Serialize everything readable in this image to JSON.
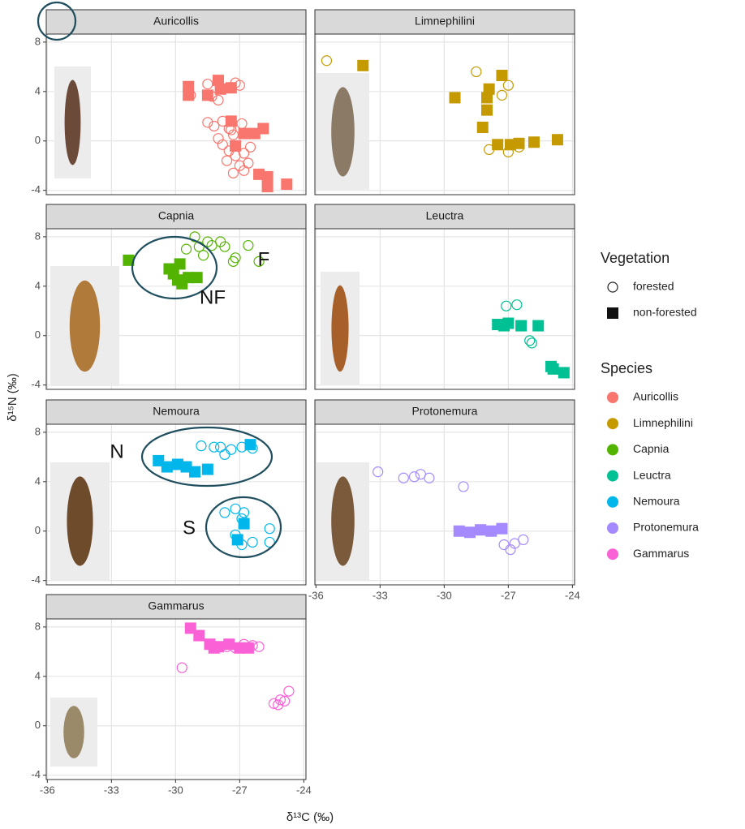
{
  "axes": {
    "x_label": "δ¹³C (‰)",
    "y_label": "δ¹⁵N (‰)"
  },
  "legend": {
    "vegetation_title": "Vegetation",
    "species_title": "Species"
  },
  "chart_data": [
    {
      "type": "scatter",
      "title": "Auricollis",
      "color": "#F8766D",
      "xlim": [
        -36.05,
        -23.9
      ],
      "xticks": [
        -36,
        -33,
        -30,
        -27,
        -24
      ],
      "ylim": [
        -4.35,
        8.65
      ],
      "yticks": [
        -4,
        0,
        4,
        8
      ],
      "grid": true,
      "series": [
        {
          "name": "forested",
          "marker": "circle",
          "x": [
            -28.5,
            -28,
            -27.2,
            -27,
            -28.3,
            -29.3,
            -28,
            -28.5,
            -28.2,
            -27.8,
            -27.5,
            -27.3,
            -28,
            -27.8,
            -27.5,
            -27.2,
            -26.8,
            -26.5,
            -27.6,
            -27,
            -26.6,
            -27.3,
            -26.8,
            -27.4,
            -26.9
          ],
          "values": [
            4.6,
            4.8,
            4.7,
            4.5,
            3.6,
            3.7,
            3.3,
            1.5,
            1.2,
            1.6,
            1.0,
            0.5,
            0.2,
            -0.3,
            -0.8,
            -1.2,
            -1.0,
            -0.5,
            -1.6,
            -2.0,
            -1.8,
            -2.6,
            -2.4,
            0.9,
            1.4
          ]
        },
        {
          "name": "non-forested",
          "marker": "square",
          "x": [
            -29.4,
            -29.4,
            -28.5,
            -28,
            -27.9,
            -27.4,
            -27.4,
            -26.8,
            -27.2,
            -26.3,
            -25.9,
            -26.1,
            -25.7,
            -25.7,
            -24.8
          ],
          "values": [
            4.4,
            3.7,
            3.7,
            4.9,
            4.2,
            4.3,
            1.6,
            0.6,
            -0.4,
            0.6,
            1.0,
            -2.7,
            -2.9,
            -3.7,
            -3.5
          ]
        }
      ]
    },
    {
      "type": "scatter",
      "title": "Limnephilini",
      "color": "#C49A00",
      "xlim": [
        -36.05,
        -23.9
      ],
      "xticks": [
        -36,
        -33,
        -30,
        -27,
        -24
      ],
      "ylim": [
        -4.35,
        8.65
      ],
      "yticks": [
        -4,
        0,
        4,
        8
      ],
      "grid": true,
      "series": [
        {
          "name": "forested",
          "marker": "circle",
          "x": [
            -35.5,
            -28.5,
            -27,
            -27.3,
            -27.9,
            -27,
            -26.5
          ],
          "values": [
            6.5,
            5.6,
            4.5,
            3.7,
            -0.7,
            -0.9,
            -0.5
          ]
        },
        {
          "name": "non-forested",
          "marker": "square",
          "x": [
            -33.8,
            -29.5,
            -27.3,
            -27.9,
            -28,
            -28,
            -28.2,
            -27.5,
            -26.9,
            -26.5,
            -25.8,
            -24.7
          ],
          "values": [
            6.1,
            3.5,
            5.3,
            4.2,
            3.5,
            2.5,
            1.1,
            -0.3,
            -0.3,
            -0.2,
            -0.1,
            0.1
          ]
        }
      ]
    },
    {
      "type": "scatter",
      "title": "Capnia",
      "color": "#53B400",
      "annotations": [
        "F",
        "NF"
      ],
      "xlim": [
        -36.05,
        -23.9
      ],
      "xticks": [
        -36,
        -33,
        -30,
        -27,
        -24
      ],
      "ylim": [
        -4.35,
        8.65
      ],
      "yticks": [
        -4,
        0,
        4,
        8
      ],
      "grid": true,
      "series": [
        {
          "name": "forested",
          "marker": "circle",
          "x": [
            -29.1,
            -28.5,
            -28.3,
            -28.9,
            -27.9,
            -27.7,
            -28.7,
            -29.5,
            -27.2,
            -26.6,
            -27.3,
            -26.1
          ],
          "values": [
            8.0,
            7.6,
            7.3,
            7.2,
            7.6,
            7.2,
            6.5,
            7.0,
            6.3,
            7.3,
            6.0,
            6.0
          ]
        },
        {
          "name": "non-forested",
          "marker": "square",
          "x": [
            -32.2,
            -30.3,
            -29.8,
            -30.1,
            -29.7,
            -29.4,
            -29.0,
            -29.9
          ],
          "values": [
            6.1,
            5.4,
            5.8,
            5.0,
            4.2,
            4.7,
            4.7,
            4.5
          ]
        }
      ]
    },
    {
      "type": "scatter",
      "title": "Leuctra",
      "color": "#00C094",
      "xlim": [
        -36.05,
        -23.9
      ],
      "xticks": [
        -36,
        -33,
        -30,
        -27,
        -24
      ],
      "ylim": [
        -4.35,
        8.65
      ],
      "yticks": [
        -4,
        0,
        4,
        8
      ],
      "grid": true,
      "series": [
        {
          "name": "forested",
          "marker": "circle",
          "x": [
            -27.1,
            -26.6,
            -26.0,
            -25.9
          ],
          "values": [
            2.4,
            2.5,
            -0.4,
            -0.6
          ]
        },
        {
          "name": "non-forested",
          "marker": "square",
          "x": [
            -27.5,
            -27.2,
            -27.0,
            -26.4,
            -25.6,
            -25.0,
            -24.9,
            -24.4
          ],
          "values": [
            0.9,
            0.8,
            1.0,
            0.8,
            0.8,
            -2.5,
            -2.7,
            -3.0
          ]
        }
      ]
    },
    {
      "type": "scatter",
      "title": "Nemoura",
      "color": "#00B6EB",
      "annotations": [
        "N",
        "S"
      ],
      "xlim": [
        -36.05,
        -23.9
      ],
      "xticks": [
        -36,
        -33,
        -30,
        -27,
        -24
      ],
      "ylim": [
        -4.35,
        8.65
      ],
      "yticks": [
        -4,
        0,
        4,
        8
      ],
      "grid": true,
      "series": [
        {
          "name": "forested",
          "marker": "circle",
          "x": [
            -28.8,
            -28.2,
            -27.9,
            -27.7,
            -27.4,
            -26.9,
            -26.4,
            -27.7,
            -27.2,
            -26.9,
            -27.2,
            -26.9,
            -26.4,
            -25.6,
            -25.6,
            -26.8
          ],
          "values": [
            6.9,
            6.8,
            6.8,
            6.2,
            6.6,
            6.8,
            6.7,
            1.5,
            1.8,
            1.0,
            -0.3,
            -1.1,
            -0.9,
            0.2,
            -0.9,
            1.5
          ]
        },
        {
          "name": "non-forested",
          "marker": "square",
          "x": [
            -30.8,
            -30.4,
            -29.9,
            -29.5,
            -29.1,
            -28.5,
            -26.5,
            -26.8,
            -27.1
          ],
          "values": [
            5.7,
            5.2,
            5.4,
            5.2,
            4.8,
            5.0,
            7.0,
            0.6,
            -0.7
          ]
        }
      ]
    },
    {
      "type": "scatter",
      "title": "Protonemura",
      "color": "#A58AFF",
      "xlim": [
        -36.05,
        -23.9
      ],
      "xticks": [
        -36,
        -33,
        -30,
        -27,
        -24
      ],
      "ylim": [
        -4.35,
        8.65
      ],
      "yticks": [
        -4,
        0,
        4,
        8
      ],
      "grid": true,
      "series": [
        {
          "name": "forested",
          "marker": "circle",
          "x": [
            -33.1,
            -31.9,
            -31.4,
            -31.1,
            -30.7,
            -29.1,
            -27.2,
            -26.9,
            -26.7,
            -26.3
          ],
          "values": [
            4.8,
            4.3,
            4.4,
            4.6,
            4.3,
            3.6,
            -1.1,
            -1.5,
            -1.0,
            -0.7
          ]
        },
        {
          "name": "non-forested",
          "marker": "square",
          "x": [
            -29.3,
            -28.8,
            -28.3,
            -27.8,
            -27.3
          ],
          "values": [
            0.0,
            -0.1,
            0.1,
            0.0,
            0.2
          ]
        }
      ]
    },
    {
      "type": "scatter",
      "title": "Gammarus",
      "color": "#FB61D7",
      "xlim": [
        -36.05,
        -23.9
      ],
      "xticks": [
        -36,
        -33,
        -30,
        -27,
        -24
      ],
      "ylim": [
        -4.35,
        8.65
      ],
      "yticks": [
        -4,
        0,
        4,
        8
      ],
      "grid": true,
      "series": [
        {
          "name": "forested",
          "marker": "circle",
          "x": [
            -29.7,
            -26.8,
            -26.4,
            -26.1,
            -27.2,
            -27.6,
            -25.4,
            -25.1,
            -24.9,
            -24.7,
            -25.2
          ],
          "values": [
            4.7,
            6.6,
            6.5,
            6.4,
            6.3,
            6.4,
            1.8,
            2.1,
            2.0,
            2.8,
            1.7
          ]
        },
        {
          "name": "non-forested",
          "marker": "square",
          "x": [
            -29.3,
            -28.9,
            -28.4,
            -28.0,
            -27.5,
            -27.0,
            -26.6,
            -28.2
          ],
          "values": [
            7.9,
            7.3,
            6.6,
            6.4,
            6.6,
            6.3,
            6.3,
            6.3
          ]
        }
      ]
    }
  ]
}
